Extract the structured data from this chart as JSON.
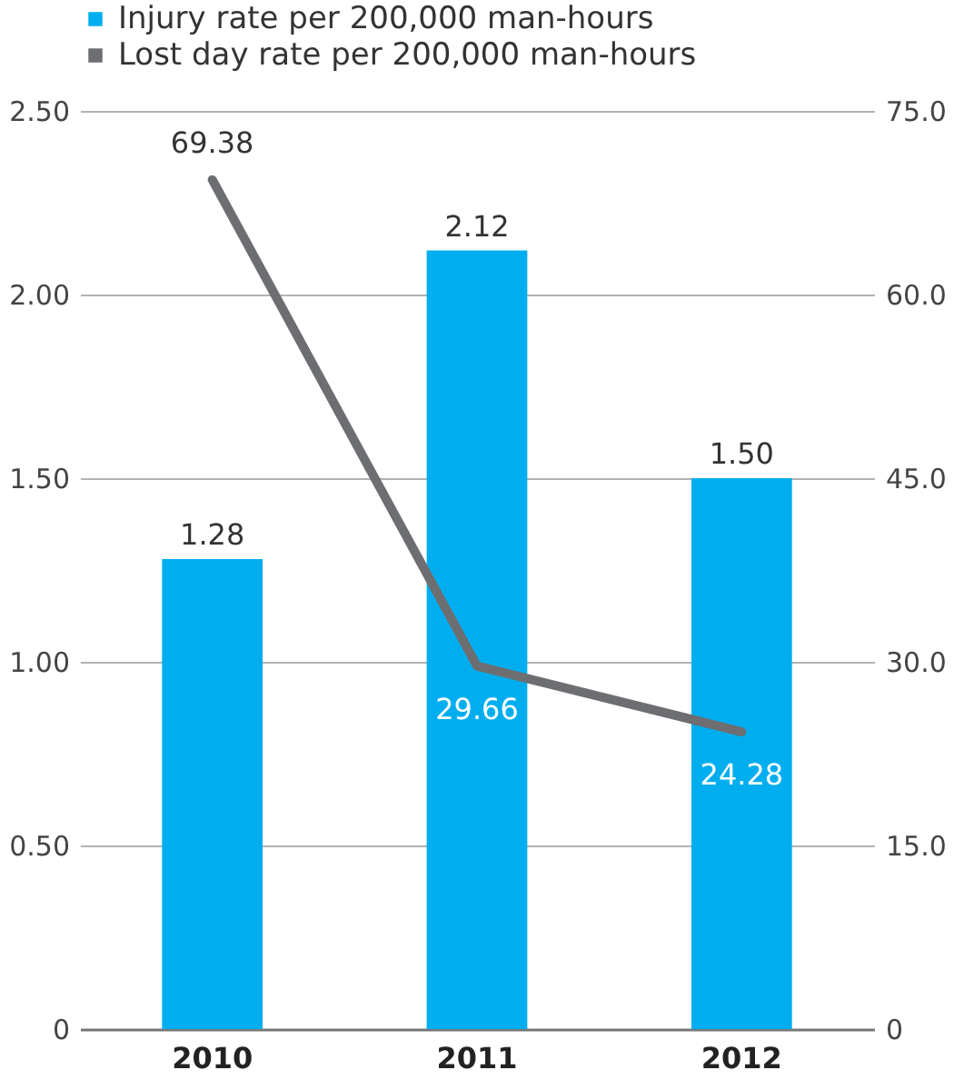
{
  "chart_data": {
    "type": "bar",
    "categories": [
      "2010",
      "2011",
      "2012"
    ],
    "series": [
      {
        "name": "Injury rate per 200,000 man-hours",
        "color": "#00aeef",
        "values": [
          1.28,
          2.12,
          1.5
        ],
        "value_labels": [
          "1.28",
          "2.12",
          "1.50"
        ]
      },
      {
        "name": "Lost day rate per 200,000 man-hours",
        "type": "line",
        "axis": "y2",
        "color": "#6d6e71",
        "values": [
          69.38,
          29.66,
          24.28
        ],
        "value_labels": [
          "69.38",
          "29.66",
          "24.28"
        ]
      }
    ],
    "ylim": [
      0,
      2.5
    ],
    "yticks": [
      {
        "value": 0,
        "label": "0"
      },
      {
        "value": 0.5,
        "label": "0.50"
      },
      {
        "value": 1,
        "label": "1.00"
      },
      {
        "value": 1.5,
        "label": "1.50"
      },
      {
        "value": 2,
        "label": "2.00"
      },
      {
        "value": 2.5,
        "label": "2.50"
      }
    ],
    "y2lim": [
      0,
      75
    ],
    "y2ticks": [
      {
        "value": 0,
        "label": "0"
      },
      {
        "value": 15,
        "label": "15.0"
      },
      {
        "value": 30,
        "label": "30.0"
      },
      {
        "value": 45,
        "label": "45.0"
      },
      {
        "value": 60,
        "label": "60.0"
      },
      {
        "value": 75,
        "label": "75.0"
      }
    ],
    "grid": "y",
    "legend": "top left",
    "marker": "none",
    "line_style": "solid"
  }
}
